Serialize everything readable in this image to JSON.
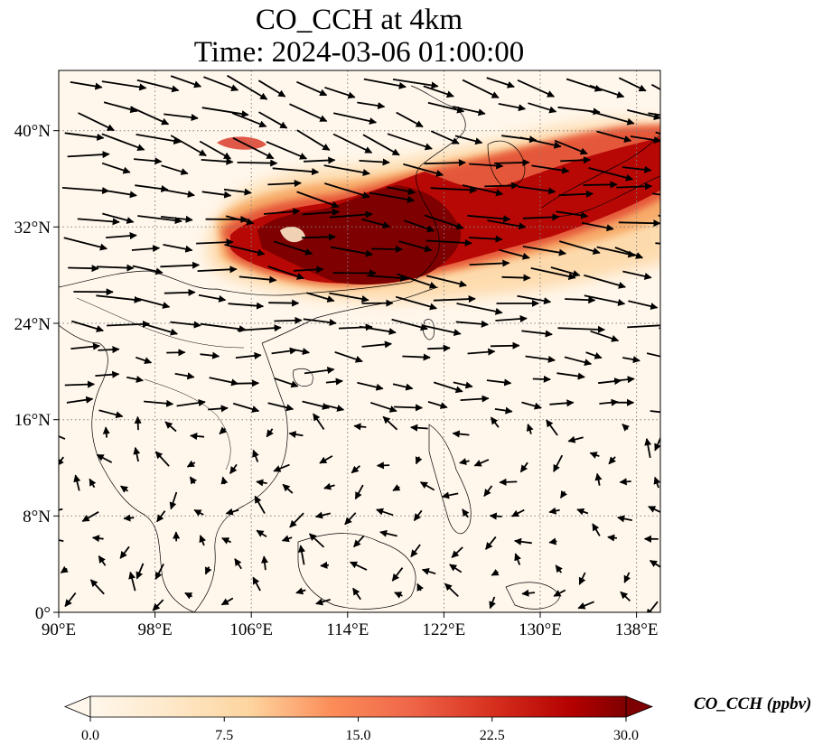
{
  "title_line1": "CO_CCH at 4km",
  "title_line2": "Time: 2024-03-06 01:00:00",
  "lon_ticks": [
    "90°E",
    "98°E",
    "106°E",
    "114°E",
    "122°E",
    "130°E",
    "138°E"
  ],
  "lat_ticks": [
    "0°",
    "8°N",
    "16°N",
    "24°N",
    "32°N",
    "40°N"
  ],
  "colorbar": {
    "label": "CO_CCH (ppbv)",
    "ticks": [
      "0.0",
      "7.5",
      "15.0",
      "22.5",
      "30.0"
    ],
    "min": 0,
    "max": 30,
    "colormap": "OrRd",
    "extend": "both"
  },
  "colors": {
    "background_low": "#fff7ec",
    "plume_core": "#7f0000",
    "arrow": "#000000",
    "grid": "#808080"
  },
  "chart_data": {
    "type": "heatmap",
    "variable": "CO_CCH",
    "level": "4km",
    "time": "2024-03-06 01:00:00",
    "x_range_lon": [
      90,
      140
    ],
    "y_range_lat": [
      0,
      45
    ],
    "value_range": [
      0,
      30
    ],
    "units": "ppbv",
    "overlay": "wind vectors"
  }
}
